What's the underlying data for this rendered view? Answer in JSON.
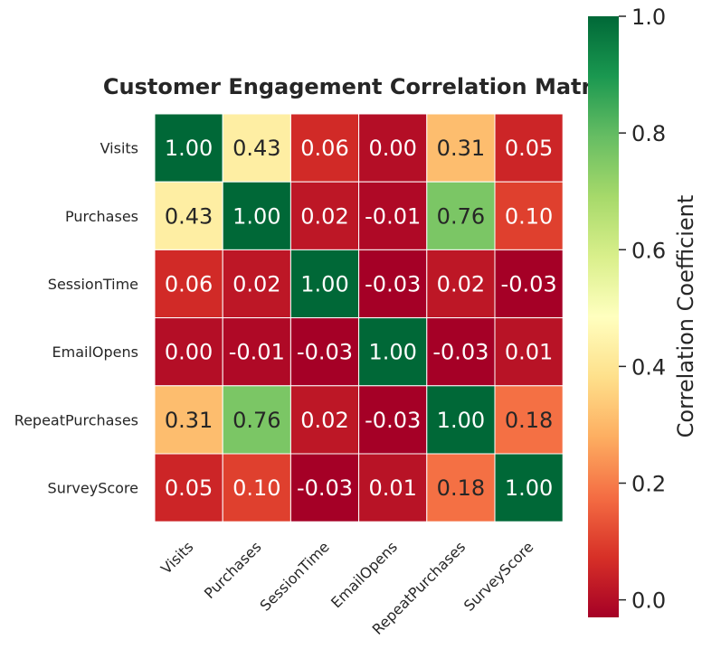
{
  "chart_data": {
    "type": "heatmap",
    "title": "Customer Engagement Correlation Matrix",
    "row_labels": [
      "Visits",
      "Purchases",
      "SessionTime",
      "EmailOpens",
      "RepeatPurchases",
      "SurveyScore"
    ],
    "col_labels": [
      "Visits",
      "Purchases",
      "SessionTime",
      "EmailOpens",
      "RepeatPurchases",
      "SurveyScore"
    ],
    "values": [
      [
        1.0,
        0.43,
        0.06,
        0.0,
        0.31,
        0.05
      ],
      [
        0.43,
        1.0,
        0.02,
        -0.01,
        0.76,
        0.1
      ],
      [
        0.06,
        0.02,
        1.0,
        -0.03,
        0.02,
        -0.03
      ],
      [
        0.0,
        -0.01,
        -0.03,
        1.0,
        -0.03,
        0.01
      ],
      [
        0.31,
        0.76,
        0.02,
        -0.03,
        1.0,
        0.18
      ],
      [
        0.05,
        0.1,
        -0.03,
        0.01,
        0.18,
        1.0
      ]
    ],
    "value_format": "2 decimals",
    "colormap": "RdYlGn",
    "vmin": -0.03,
    "vmax": 1.0,
    "colorbar": {
      "label": "Correlation Coefficient",
      "ticks": [
        "0.0",
        "0.2",
        "0.4",
        "0.6",
        "0.8",
        "1.0"
      ],
      "tick_values": [
        0.0,
        0.2,
        0.4,
        0.6,
        0.8,
        1.0
      ]
    }
  }
}
